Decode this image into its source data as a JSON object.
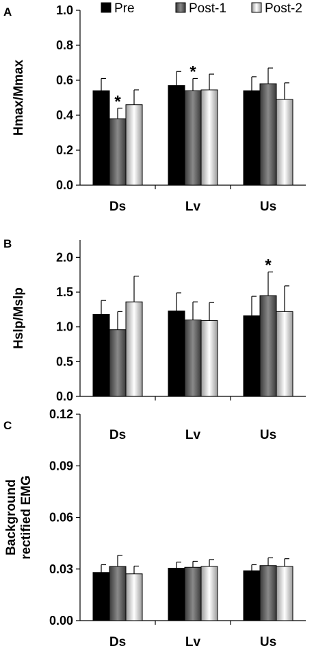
{
  "legend": {
    "position": "top",
    "entries": [
      "Pre",
      "Post-1",
      "Post-2"
    ]
  },
  "colors": {
    "Pre": "#000000",
    "Post-1": "#555555",
    "Post-2": "#ffffff"
  },
  "chart_data": [
    {
      "type": "bar",
      "panel_label": "A",
      "ylabel": "Hmax/Mmax",
      "categories": [
        "Ds",
        "Lv",
        "Us"
      ],
      "ylim": [
        0,
        1.0
      ],
      "yticks": [
        "0.0",
        "0.2",
        "0.4",
        "0.6",
        "0.8",
        "1.0"
      ],
      "series": [
        {
          "name": "Pre",
          "values": [
            0.54,
            0.57,
            0.54
          ],
          "errors": [
            0.07,
            0.08,
            0.08
          ]
        },
        {
          "name": "Post-1",
          "values": [
            0.38,
            0.54,
            0.58
          ],
          "errors": [
            0.06,
            0.07,
            0.09
          ]
        },
        {
          "name": "Post-2",
          "values": [
            0.46,
            0.545,
            0.49
          ],
          "errors": [
            0.085,
            0.09,
            0.095
          ]
        }
      ],
      "annotations": [
        {
          "category": "Ds",
          "series": "Post-1",
          "text": "*"
        },
        {
          "category": "Lv",
          "series": "Post-1",
          "text": "*"
        }
      ]
    },
    {
      "type": "bar",
      "panel_label": "B",
      "ylabel": "Hslp/Mslp",
      "categories": [
        "Ds",
        "Lv",
        "Us"
      ],
      "ylim": [
        0,
        2.25
      ],
      "yticks": [
        "0.0",
        "0.5",
        "1.0",
        "1.5",
        "2.0"
      ],
      "series": [
        {
          "name": "Pre",
          "values": [
            1.18,
            1.23,
            1.16
          ],
          "errors": [
            0.2,
            0.26,
            0.28
          ]
        },
        {
          "name": "Post-1",
          "values": [
            0.96,
            1.1,
            1.45
          ],
          "errors": [
            0.26,
            0.26,
            0.34
          ]
        },
        {
          "name": "Post-2",
          "values": [
            1.36,
            1.09,
            1.22
          ],
          "errors": [
            0.37,
            0.26,
            0.37
          ]
        }
      ],
      "annotations": [
        {
          "category": "Us",
          "series": "Post-1",
          "text": "*"
        }
      ]
    },
    {
      "type": "bar",
      "panel_label": "C",
      "ylabel": "Background rectified EMG",
      "ylabel_lines": [
        "Background",
        "rectified EMG"
      ],
      "categories": [
        "Ds",
        "Lv",
        "Us"
      ],
      "ylim": [
        0,
        0.12
      ],
      "yticks": [
        "0.00",
        "0.03",
        "0.06",
        "0.09",
        "0.12"
      ],
      "series": [
        {
          "name": "Pre",
          "values": [
            0.028,
            0.0305,
            0.029
          ],
          "errors": [
            0.0045,
            0.0035,
            0.0035
          ]
        },
        {
          "name": "Post-1",
          "values": [
            0.0315,
            0.031,
            0.032
          ],
          "errors": [
            0.0065,
            0.0035,
            0.0045
          ]
        },
        {
          "name": "Post-2",
          "values": [
            0.0272,
            0.0315,
            0.0315
          ],
          "errors": [
            0.0045,
            0.004,
            0.0045
          ]
        }
      ],
      "annotations": []
    }
  ]
}
